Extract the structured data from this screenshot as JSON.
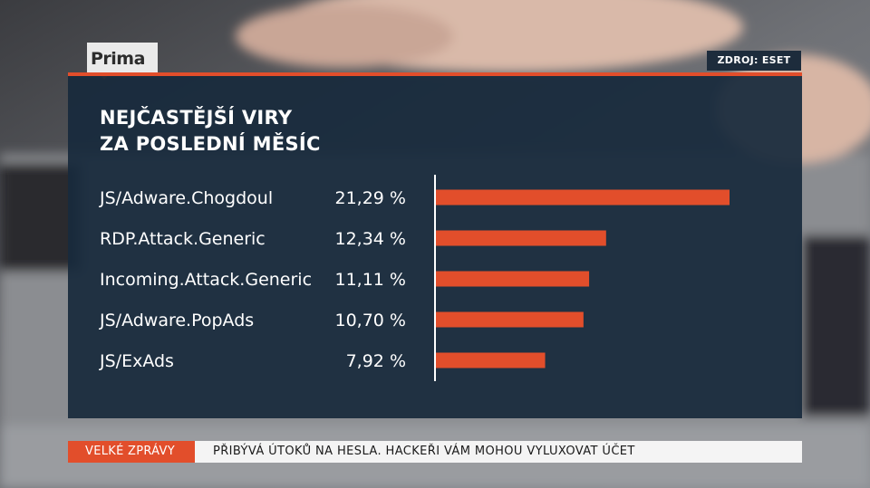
{
  "channel": {
    "logo_text": "Prima"
  },
  "source": {
    "label": "ZDROJ: ESET"
  },
  "colors": {
    "bar": "#e24e2b",
    "panel": "#182a3c",
    "accent": "#e24e2b",
    "text": "#ffffff"
  },
  "chart_data": {
    "type": "bar",
    "orientation": "horizontal",
    "title": "NEJČASTĚJŠÍ VIRY ZA POSLEDNÍ MĚSÍC",
    "title_lines": [
      "NEJČASTĚJŠÍ VIRY",
      "ZA POSLEDNÍ MĚSÍC"
    ],
    "categories": [
      "JS/Adware.Chogdoul",
      "RDP.Attack.Generic",
      "Incoming.Attack.Generic",
      "JS/Adware.PopAds",
      "JS/ExAds"
    ],
    "values": [
      21.29,
      12.34,
      11.11,
      10.7,
      7.92
    ],
    "value_labels": [
      "21,29 %",
      "12,34 %",
      "11,11 %",
      "10,70 %",
      "7,92 %"
    ],
    "unit": "%",
    "grid": false
  },
  "ticker": {
    "label": "VELKÉ ZPRÁVY",
    "headline": "PŘIBÝVÁ ÚTOKŮ NA HESLA. HACKEŘI VÁM MOHOU VYLUXOVAT ÚČET"
  }
}
